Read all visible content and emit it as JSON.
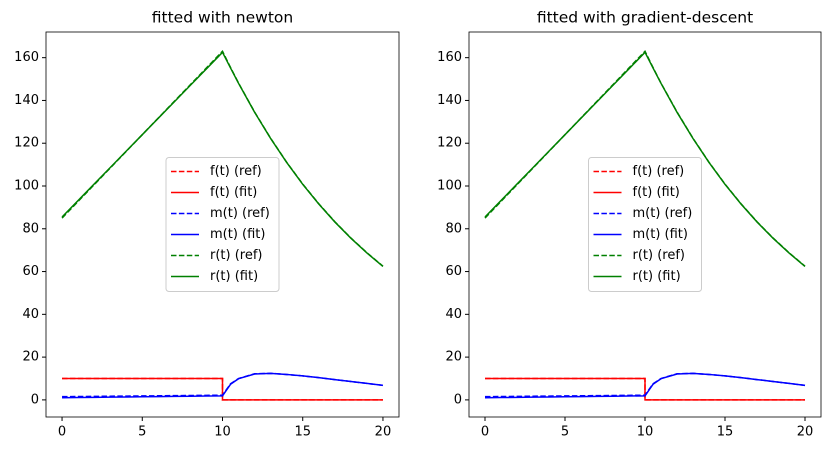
{
  "chart_data": [
    {
      "type": "line",
      "title": "fitted with newton",
      "x": [
        0,
        1,
        2,
        3,
        4,
        5,
        6,
        7,
        8,
        9,
        10,
        10,
        10.5,
        11,
        12,
        13,
        14,
        15,
        16,
        17,
        18,
        19,
        20
      ],
      "series": [
        {
          "name": "f(t) (ref)",
          "color": "#ff0000",
          "linestyle": "dashed",
          "values": [
            10,
            10,
            10,
            10,
            10,
            10,
            10,
            10,
            10,
            10,
            10,
            0,
            0,
            0,
            0,
            0,
            0,
            0,
            0,
            0,
            0,
            0,
            0
          ]
        },
        {
          "name": "f(t) (fit)",
          "color": "#ff0000",
          "linestyle": "solid",
          "values": [
            10,
            10,
            10,
            10,
            10,
            10,
            10,
            10,
            10,
            10,
            10,
            0,
            0,
            0,
            0,
            0,
            0,
            0,
            0,
            0,
            0,
            0,
            0
          ]
        },
        {
          "name": "m(t) (ref)",
          "color": "#0000ff",
          "linestyle": "dashed",
          "values": [
            1.5,
            1.57,
            1.64,
            1.71,
            1.78,
            1.85,
            1.92,
            1.99,
            2.06,
            2.13,
            2.2,
            2.2,
            7.5,
            10,
            12.2,
            12.4,
            11.9,
            11.2,
            10.4,
            9.5,
            8.6,
            7.7,
            6.8
          ]
        },
        {
          "name": "m(t) (fit)",
          "color": "#0000ff",
          "linestyle": "solid",
          "values": [
            1,
            1.09,
            1.18,
            1.27,
            1.36,
            1.45,
            1.54,
            1.63,
            1.72,
            1.81,
            1.9,
            1.9,
            7.3,
            9.9,
            12.1,
            12.4,
            11.9,
            11.2,
            10.4,
            9.5,
            8.6,
            7.7,
            6.8
          ]
        },
        {
          "name": "r(t) (ref)",
          "color": "#008000",
          "linestyle": "dashed",
          "values": [
            85,
            92.8,
            100.6,
            108.4,
            116.2,
            124,
            131.8,
            139.6,
            147.4,
            155.2,
            163,
            163,
            155.4,
            148.1,
            134.6,
            122.3,
            111.1,
            100.9,
            91.7,
            83.3,
            75.7,
            68.8,
            62.5
          ]
        },
        {
          "name": "r(t) (fit)",
          "color": "#008000",
          "linestyle": "solid",
          "values": [
            85.5,
            93.2,
            100.9,
            108.6,
            116.3,
            124,
            131.7,
            139.4,
            147.1,
            154.8,
            162.5,
            162.5,
            155.2,
            148,
            134.5,
            122.2,
            111,
            100.8,
            91.6,
            83.2,
            75.6,
            68.7,
            62.4
          ]
        }
      ],
      "xlim": [
        -1,
        21
      ],
      "ylim": [
        -8,
        172
      ],
      "xticks": [
        0,
        5,
        10,
        15,
        20
      ],
      "yticks": [
        0,
        20,
        40,
        60,
        80,
        100,
        120,
        140,
        160
      ],
      "legend": "center"
    },
    {
      "type": "line",
      "title": "fitted with gradient-descent",
      "x": [
        0,
        1,
        2,
        3,
        4,
        5,
        6,
        7,
        8,
        9,
        10,
        10,
        10.5,
        11,
        12,
        13,
        14,
        15,
        16,
        17,
        18,
        19,
        20
      ],
      "series": [
        {
          "name": "f(t) (ref)",
          "color": "#ff0000",
          "linestyle": "dashed",
          "values": [
            10,
            10,
            10,
            10,
            10,
            10,
            10,
            10,
            10,
            10,
            10,
            0,
            0,
            0,
            0,
            0,
            0,
            0,
            0,
            0,
            0,
            0,
            0
          ]
        },
        {
          "name": "f(t) (fit)",
          "color": "#ff0000",
          "linestyle": "solid",
          "values": [
            10,
            10,
            10,
            10,
            10,
            10,
            10,
            10,
            10,
            10,
            10,
            0,
            0,
            0,
            0,
            0,
            0,
            0,
            0,
            0,
            0,
            0,
            0
          ]
        },
        {
          "name": "m(t) (ref)",
          "color": "#0000ff",
          "linestyle": "dashed",
          "values": [
            1.5,
            1.57,
            1.64,
            1.71,
            1.78,
            1.85,
            1.92,
            1.99,
            2.06,
            2.13,
            2.2,
            2.2,
            7.5,
            10,
            12.2,
            12.4,
            11.9,
            11.2,
            10.4,
            9.5,
            8.6,
            7.7,
            6.8
          ]
        },
        {
          "name": "m(t) (fit)",
          "color": "#0000ff",
          "linestyle": "solid",
          "values": [
            1,
            1.09,
            1.18,
            1.27,
            1.36,
            1.45,
            1.54,
            1.63,
            1.72,
            1.81,
            1.9,
            1.9,
            7.3,
            9.9,
            12.1,
            12.4,
            11.9,
            11.2,
            10.4,
            9.5,
            8.6,
            7.7,
            6.8
          ]
        },
        {
          "name": "r(t) (ref)",
          "color": "#008000",
          "linestyle": "dashed",
          "values": [
            85,
            92.8,
            100.6,
            108.4,
            116.2,
            124,
            131.8,
            139.6,
            147.4,
            155.2,
            163,
            163,
            155.4,
            148.1,
            134.6,
            122.3,
            111.1,
            100.9,
            91.7,
            83.3,
            75.7,
            68.8,
            62.5
          ]
        },
        {
          "name": "r(t) (fit)",
          "color": "#008000",
          "linestyle": "solid",
          "values": [
            85.5,
            93.2,
            100.9,
            108.6,
            116.3,
            124,
            131.7,
            139.4,
            147.1,
            154.8,
            162.5,
            162.5,
            155.2,
            148,
            134.5,
            122.2,
            111,
            100.8,
            91.6,
            83.2,
            75.6,
            68.7,
            62.4
          ]
        }
      ],
      "xlim": [
        -1,
        21
      ],
      "ylim": [
        -8,
        172
      ],
      "xticks": [
        0,
        5,
        10,
        15,
        20
      ],
      "yticks": [
        0,
        20,
        40,
        60,
        80,
        100,
        120,
        140,
        160
      ],
      "legend": "center"
    }
  ]
}
